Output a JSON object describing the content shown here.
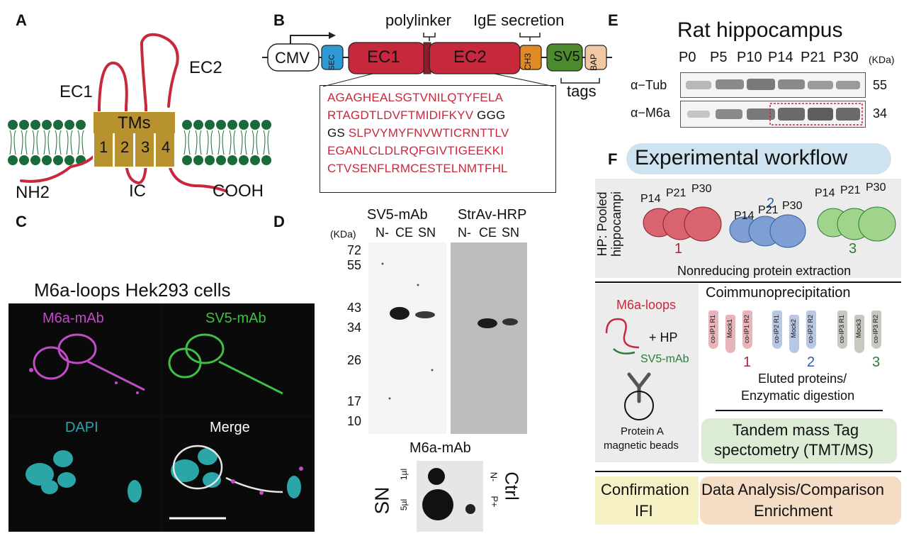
{
  "panelA": {
    "letter": "A",
    "ec1": "EC1",
    "ec2": "EC2",
    "tms": "TMs",
    "tm_numbers": [
      "1",
      "2",
      "3",
      "4"
    ],
    "nh2": "NH2",
    "ic": "IC",
    "cooh": "COOH"
  },
  "panelB": {
    "letter": "B",
    "polylinker": "polylinker",
    "ige": "IgE secretion",
    "cmv": "CMV",
    "sec": "SEC",
    "ec1": "EC1",
    "ec2": "EC2",
    "ch3": "CH3",
    "sv5": "SV5",
    "bap": "BAP",
    "tags": "tags",
    "seq": {
      "l1": "AGAGHEALSGTVNILQTYFELA",
      "l2a": "RTAGDTLDVFTMIDIFKYV",
      "l2b": " GGG",
      "l3a": "GS ",
      "l3b": "SLPVYMYFNVWTICRNTTLV",
      "l4": "EGANLCLDLRQFGIVTIGEEKKI",
      "l5": "CTVSENFLRMCESTELNMTFHL"
    }
  },
  "panelC": {
    "letter": "C",
    "title": "M6a-loops Hek293 cells",
    "q1": "M6a-mAb",
    "q2": "SV5-mAb",
    "q3": "DAPI",
    "q4": "Merge"
  },
  "panelD": {
    "letter": "D",
    "kda": "(KDa)",
    "markers": [
      "72",
      "55",
      "43",
      "34",
      "26",
      "17",
      "10"
    ],
    "blot1_title": "SV5-mAb",
    "blot2_title": "StrAv-HRP",
    "lanes": [
      "N-",
      "CE",
      "SN"
    ],
    "dot_title": "M6a-mAb",
    "sn": "SN",
    "v1": "1µl",
    "v5": "5µl",
    "ctrl": "Ctrl",
    "nminus": "N-",
    "pplus": "P+"
  },
  "panelE": {
    "letter": "E",
    "title": "Rat hippocampus",
    "ages": [
      "P0",
      "P5",
      "P10",
      "P14",
      "P21",
      "P30"
    ],
    "kda": "(KDa)",
    "row1": "α−Tub",
    "row2": "α−M6a",
    "kda1": "55",
    "kda2": "34"
  },
  "panelF": {
    "letter": "F",
    "title": "Experimental workflow",
    "hp": "HP: Pooled hippocampi",
    "groups": [
      {
        "num": "1",
        "color": "#a32b3b",
        "ages": [
          "P14",
          "P21",
          "P30"
        ]
      },
      {
        "num": "2",
        "color": "#2f5f9e",
        "ages": [
          "P14",
          "P21",
          "P30"
        ]
      },
      {
        "num": "3",
        "color": "#2c7a3c",
        "ages": [
          "P14",
          "P21",
          "P30"
        ]
      }
    ],
    "nonreducing": "Nonreducing protein extraction",
    "coimmuno": "Coimmunoprecipitation",
    "m6aloops": "M6a-loops",
    "plus_hp": "+ HP",
    "sv5mab": "SV5-mAb",
    "beads1": "Protein A",
    "beads2": "magnetic beads",
    "tubes": [
      [
        "co-IP1 R1",
        "Mock1",
        "co-IP1 R2"
      ],
      [
        "co-IP2 R1",
        "Mock2",
        "co-IP2 R2"
      ],
      [
        "co-IP3 R1",
        "Mock3",
        "co-IP3 R2"
      ]
    ],
    "eluted1": "Eluted proteins/",
    "eluted2": "Enzymatic digestion",
    "tmt1": "Tandem mass Tag",
    "tmt2": "spectometry (TMT/MS)",
    "confirm1": "Confirmation",
    "confirm2": "IFI",
    "analysis1": "Data Analysis/Comparison",
    "analysis2": "Enrichment"
  }
}
